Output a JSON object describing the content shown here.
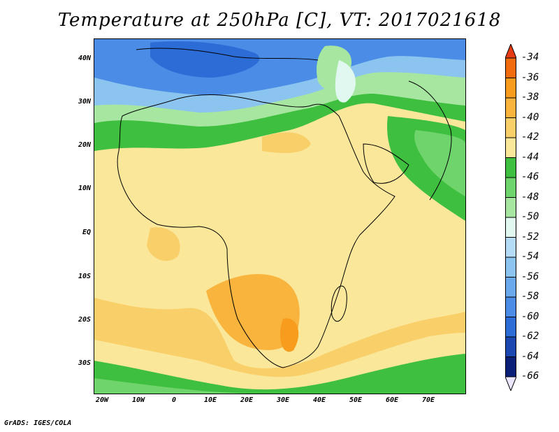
{
  "title": "Temperature at 250hPa [C], VT: 2017021618",
  "footer": "GrADS: IGES/COLA",
  "map": {
    "lat_labels": [
      "40N",
      "30N",
      "20N",
      "10N",
      "EQ",
      "10S",
      "20S",
      "30S"
    ],
    "lon_labels": [
      "20W",
      "10W",
      "0",
      "10E",
      "20E",
      "30E",
      "40E",
      "50E",
      "60E",
      "70E"
    ]
  },
  "colorbar": {
    "labels": [
      "-34",
      "-36",
      "-38",
      "-40",
      "-42",
      "-44",
      "-46",
      "-48",
      "-50",
      "-52",
      "-54",
      "-56",
      "-58",
      "-60",
      "-62",
      "-64",
      "-66"
    ],
    "colors": [
      "#e63b12",
      "#f26b0f",
      "#f79c1c",
      "#f8b43c",
      "#f9cf6a",
      "#fbe79a",
      "#3fbf3f",
      "#6fd46b",
      "#a6e6a0",
      "#e0f8f0",
      "#b4dcf6",
      "#8cc4f0",
      "#6aaaec",
      "#4a8ce6",
      "#2c6cd6",
      "#1a48b0",
      "#0a1f78"
    ]
  }
}
